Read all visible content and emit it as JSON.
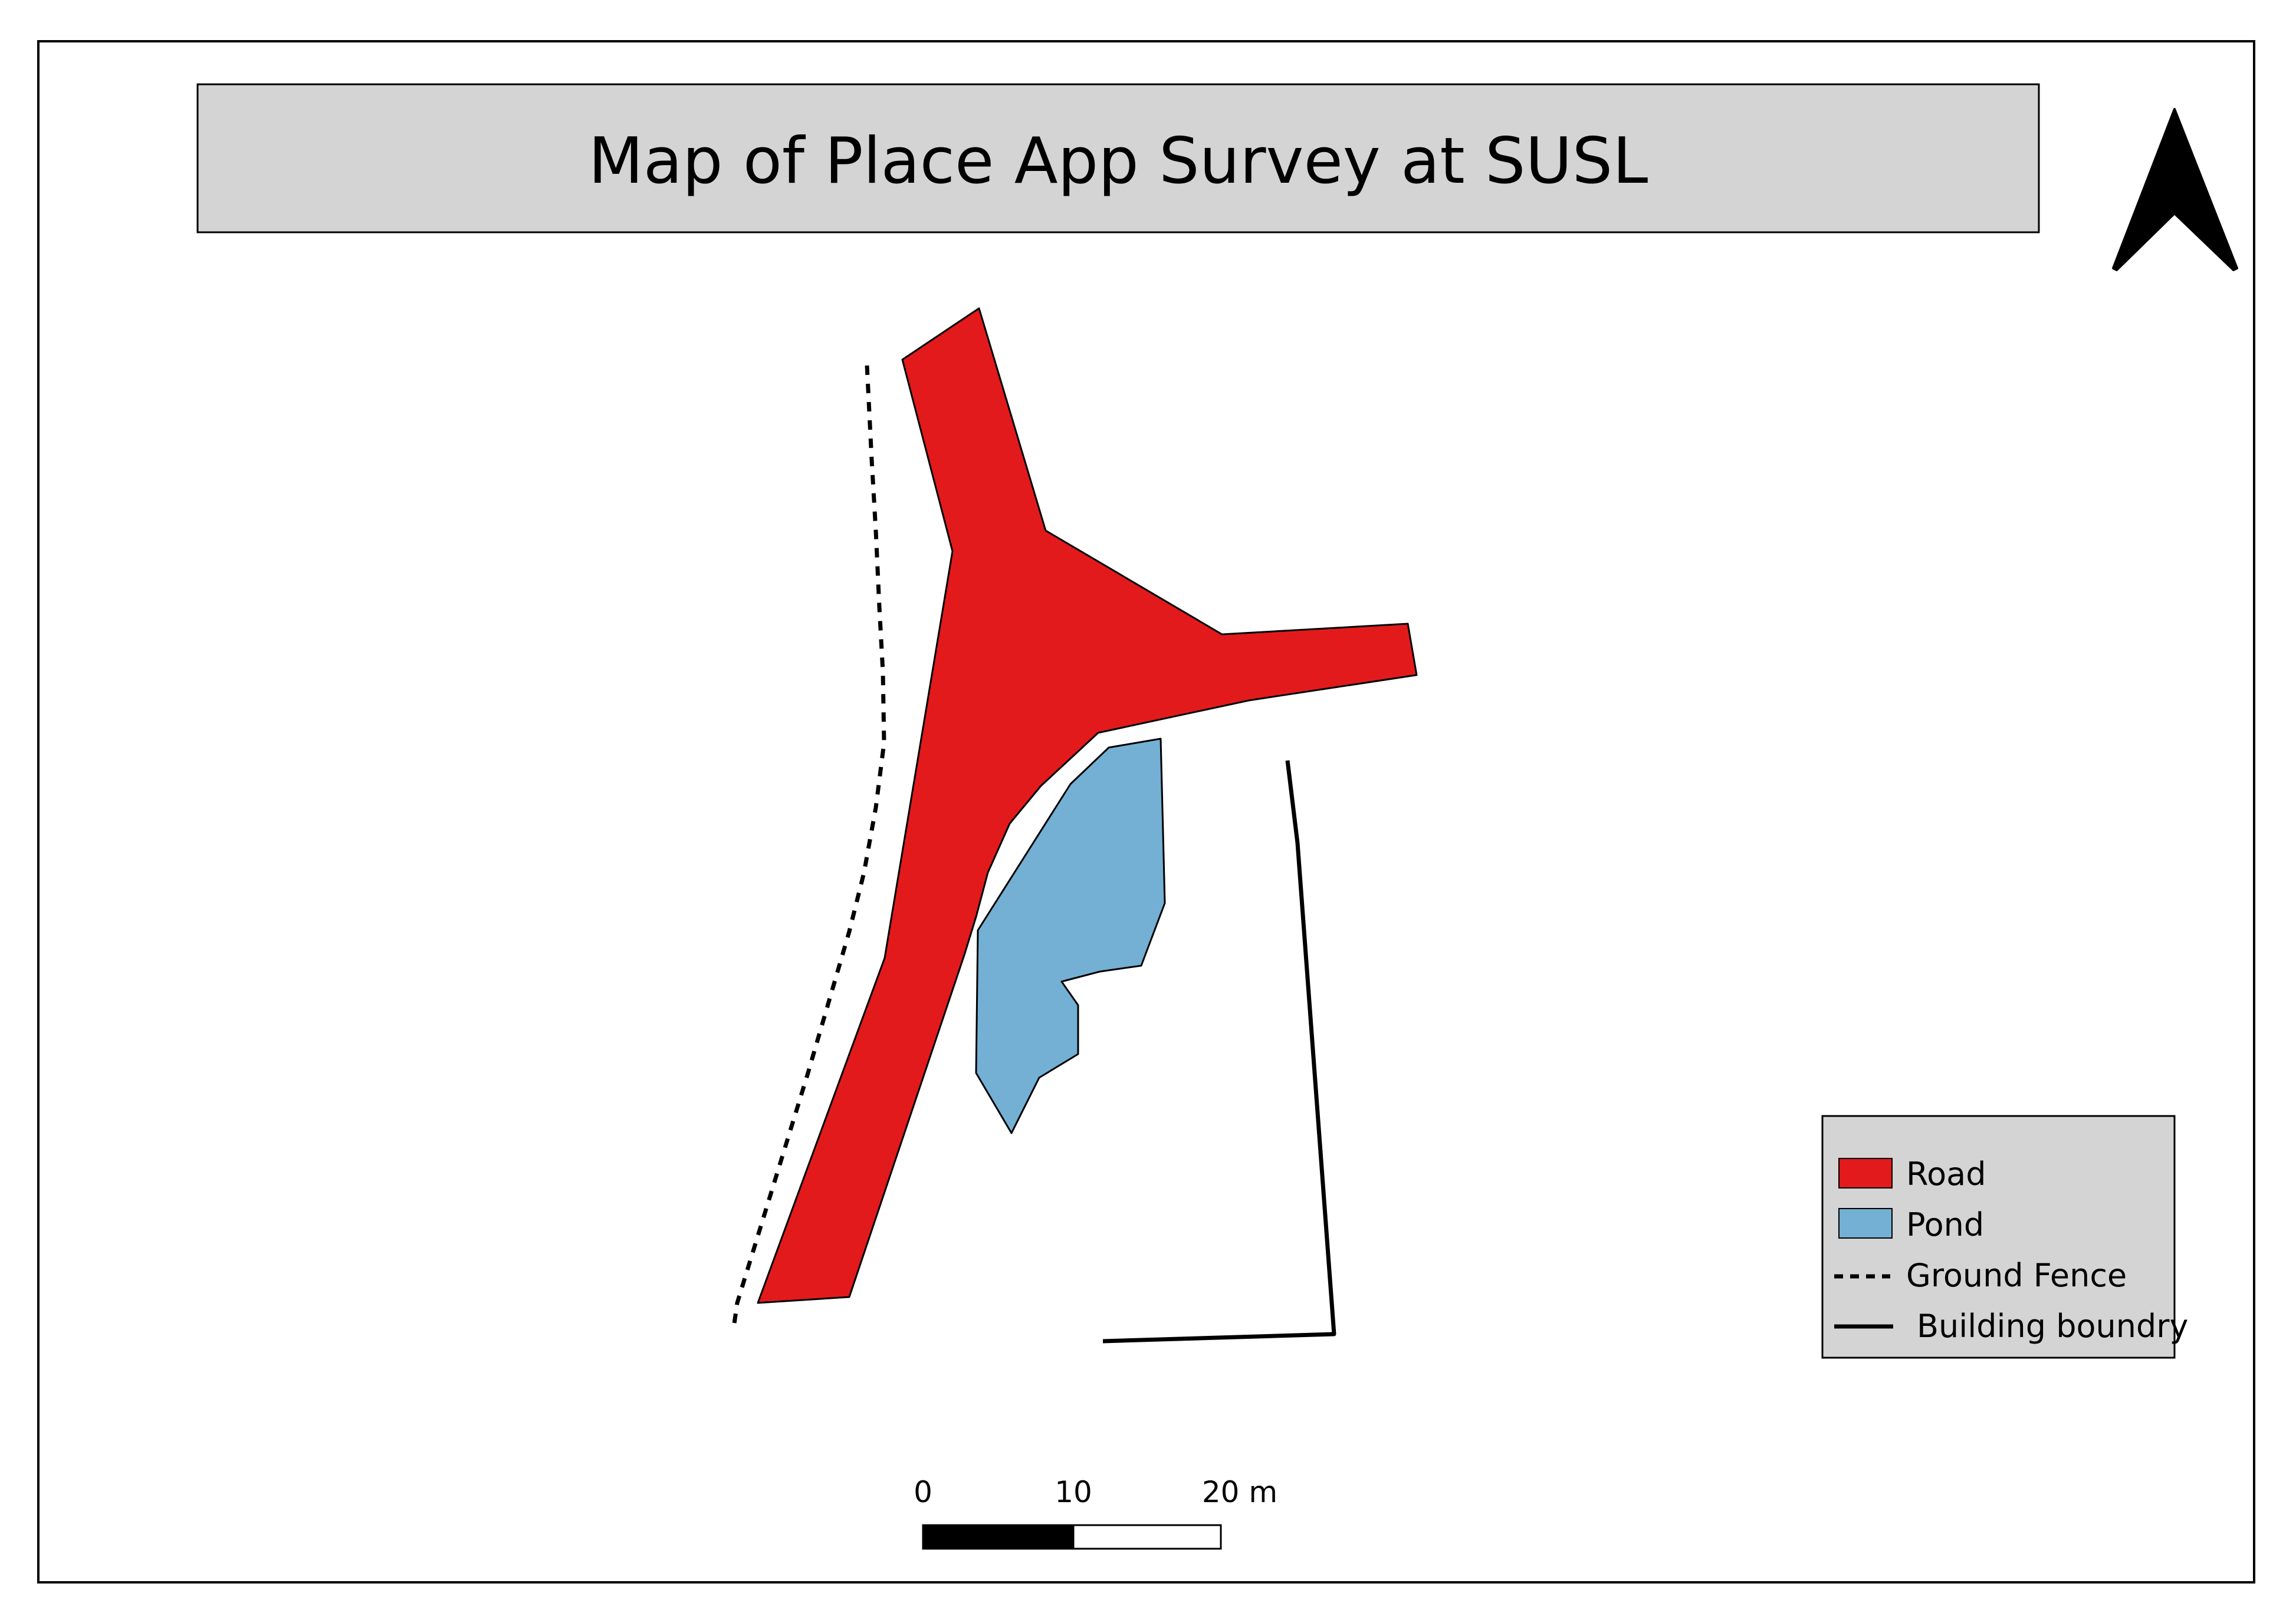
{
  "title": "Map of Place App Survey at SUSL",
  "legend": {
    "items": [
      {
        "label": "Road",
        "kind": "fill",
        "color": "#e31a1c"
      },
      {
        "label": "Pond",
        "kind": "fill",
        "color": "#73b0d4"
      },
      {
        "label": "Ground Fence",
        "kind": "dashed-line",
        "color": "#000000"
      },
      {
        "label": "Building boundry",
        "kind": "solid-line",
        "color": "#000000"
      }
    ]
  },
  "scale_bar": {
    "labels": [
      "0",
      "10",
      "20 m"
    ]
  },
  "north_arrow": {
    "icon": "north-arrow-icon"
  },
  "colors": {
    "road": "#e31a1c",
    "pond": "#73b0d4",
    "title_box": "#d4d4d4",
    "legend_box": "#d4d4d4"
  }
}
